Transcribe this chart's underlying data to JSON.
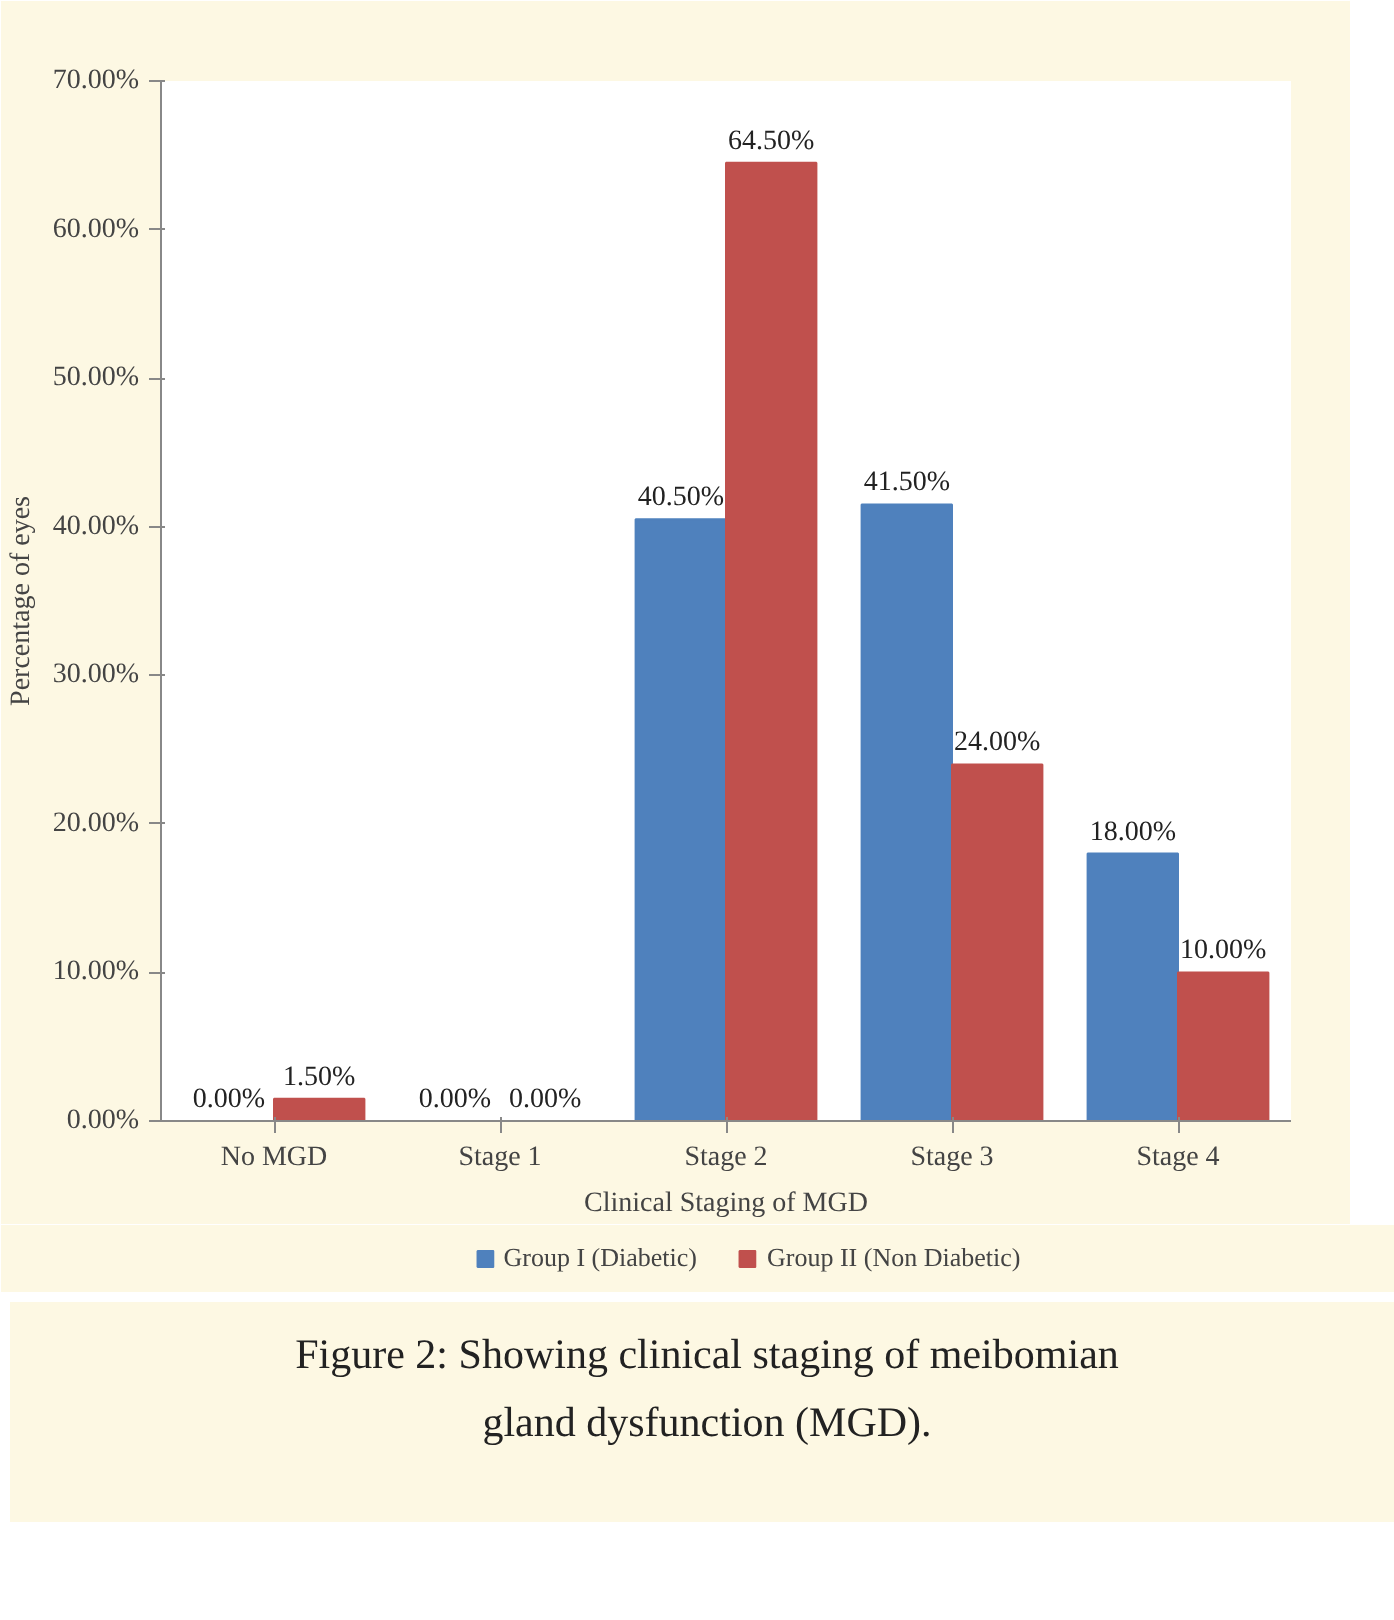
{
  "chart_data": {
    "type": "bar",
    "xlabel": "Clinical Staging of MGD",
    "ylabel": "Percentage of eyes",
    "categories": [
      "No MGD",
      "Stage 1",
      "Stage 2",
      "Stage 3",
      "Stage 4"
    ],
    "series": [
      {
        "name": "Group I (Diabetic)",
        "color": "#4f81bd",
        "values": [
          0,
          0,
          40.5,
          41.5,
          18
        ],
        "value_labels": [
          "0.00%",
          "0.00%",
          "40.50%",
          "41.50%",
          "18.00%"
        ]
      },
      {
        "name": "Group II (Non Diabetic)",
        "color": "#c0504d",
        "values": [
          1.5,
          0,
          64.5,
          24,
          10
        ],
        "value_labels": [
          "1.50%",
          "0.00%",
          "64.50%",
          "24.00%",
          "10.00%"
        ]
      }
    ],
    "ylim": [
      0,
      70
    ],
    "yticks": [
      {
        "value": 0,
        "label": "0.00%"
      },
      {
        "value": 10,
        "label": "10.00%"
      },
      {
        "value": 20,
        "label": "20.00%"
      },
      {
        "value": 30,
        "label": "30.00%"
      },
      {
        "value": 40,
        "label": "40.00%"
      },
      {
        "value": 50,
        "label": "50.00%"
      },
      {
        "value": 60,
        "label": "60.00%"
      },
      {
        "value": 70,
        "label": "70.00%"
      }
    ],
    "grid": false,
    "legend": "bottom",
    "annotations": [
      "Figure 2: Showing clinical staging of meibomian gland dysfunction (MGD)."
    ]
  }
}
